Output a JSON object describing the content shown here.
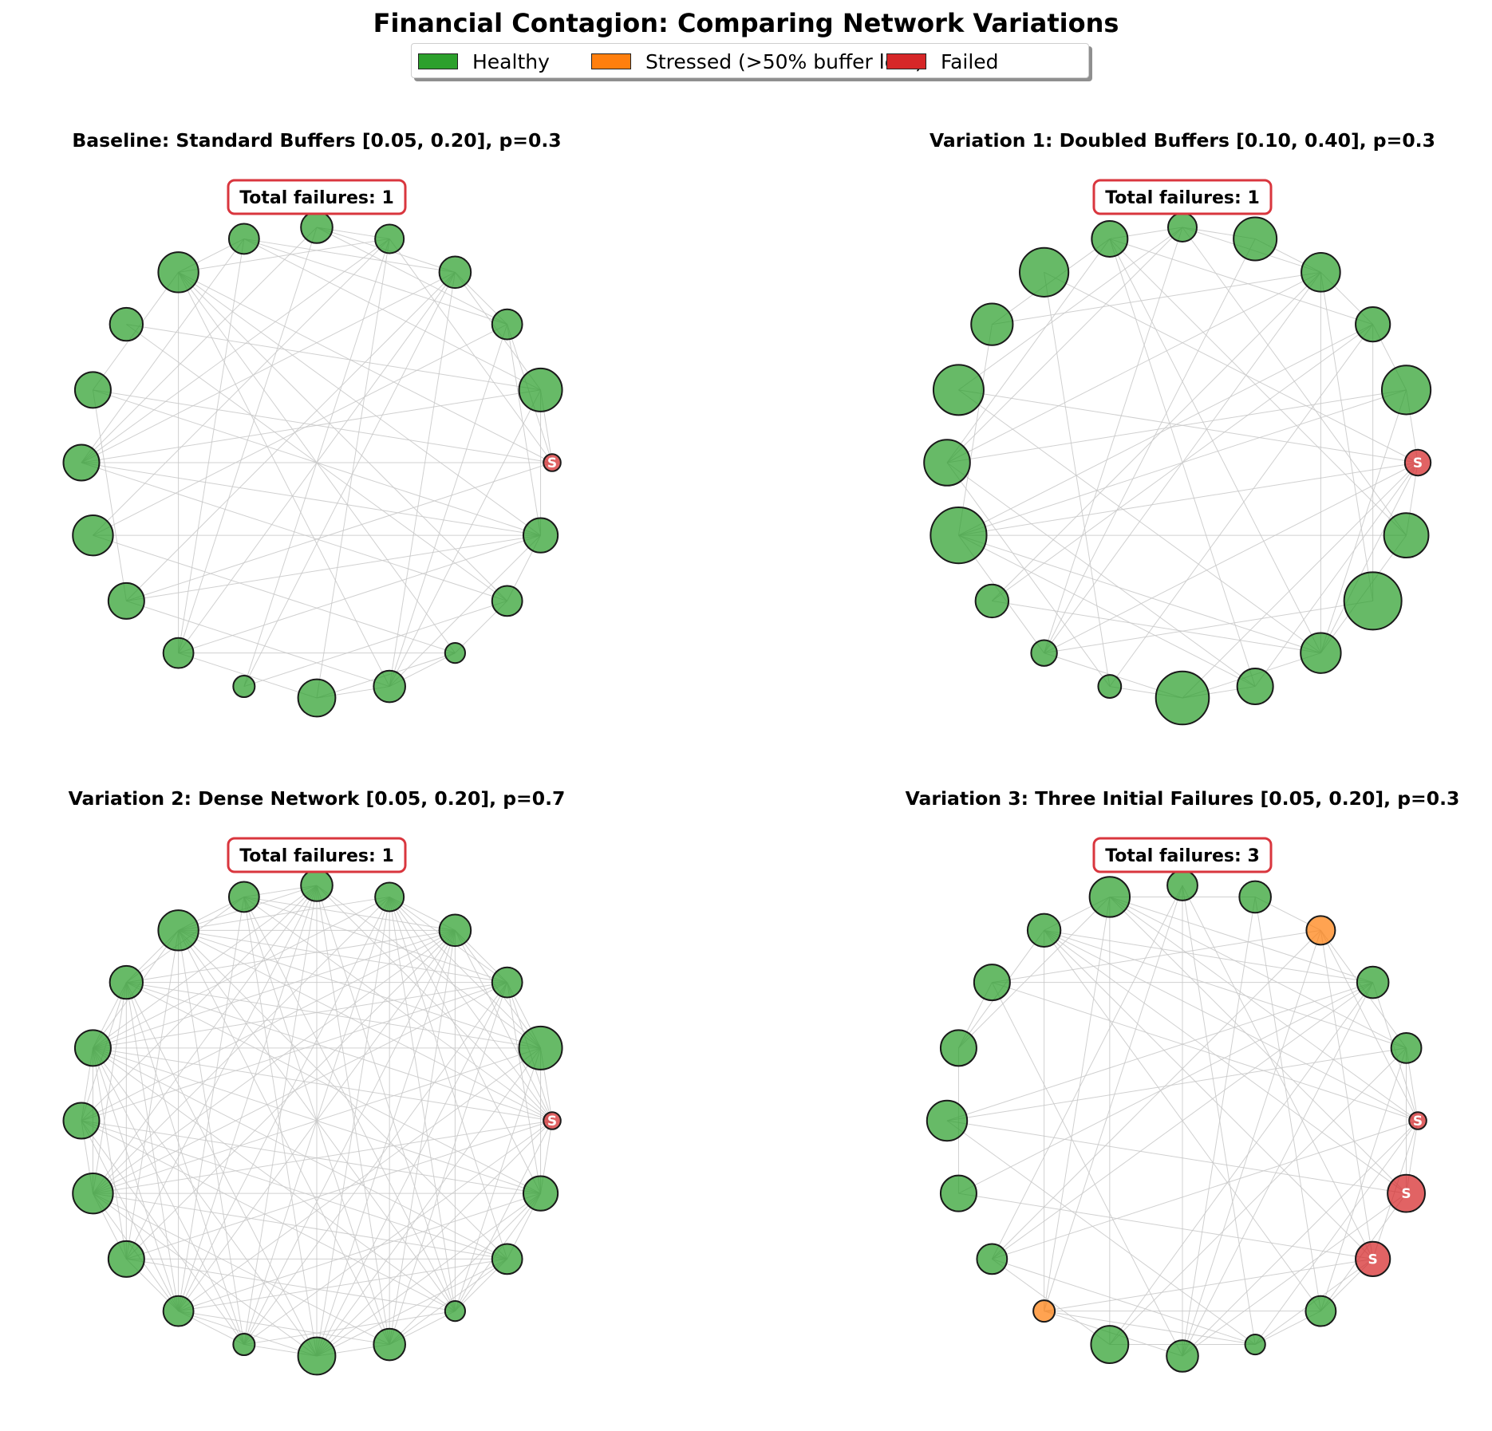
{
  "title": "Financial Contagion: Comparing Network Variations",
  "legend": {
    "items": [
      {
        "label": "Healthy",
        "color": "#2ca02c"
      },
      {
        "label": "Stressed (>50% buffer lost)",
        "color": "#ff7f0e"
      },
      {
        "label": "Failed",
        "color": "#d62728"
      }
    ]
  },
  "colors": {
    "edge": "#c8c8c8",
    "node_outline": "#1a1a1a",
    "badge_border": "#d9363e"
  },
  "chart_data": [
    {
      "type": "network",
      "title": "Baseline: Standard Buffers [0.05, 0.20], p=0.3",
      "failures_label": "Total failures: 1",
      "total_failures": 1,
      "buffer_range": [
        0.05,
        0.2
      ],
      "p": 0.3,
      "seed": 11,
      "node_sizes": [
        0.6,
        1.5,
        1.05,
        1.1,
        1.0,
        1.1,
        1.05,
        1.4,
        1.15,
        1.25,
        1.25,
        1.4,
        1.25,
        1.05,
        0.75,
        1.3,
        1.1,
        0.7,
        1.05,
        1.2
      ],
      "node_status": [
        "failed",
        "healthy",
        "healthy",
        "healthy",
        "healthy",
        "healthy",
        "healthy",
        "healthy",
        "healthy",
        "healthy",
        "healthy",
        "healthy",
        "healthy",
        "healthy",
        "healthy",
        "healthy",
        "healthy",
        "healthy",
        "healthy",
        "healthy"
      ],
      "node_markers": {
        "0": "S"
      }
    },
    {
      "type": "network",
      "title": "Variation 1: Doubled Buffers [0.10, 0.40], p=0.3",
      "failures_label": "Total failures: 1",
      "total_failures": 1,
      "buffer_range": [
        0.1,
        0.4
      ],
      "p": 0.3,
      "seed": 23,
      "node_sizes": [
        0.9,
        1.7,
        1.2,
        1.35,
        1.5,
        1.0,
        1.25,
        1.7,
        1.45,
        1.75,
        1.6,
        1.95,
        1.15,
        0.9,
        0.8,
        1.85,
        1.25,
        1.4,
        2.0,
        1.55
      ],
      "node_status": [
        "failed",
        "healthy",
        "healthy",
        "healthy",
        "healthy",
        "healthy",
        "healthy",
        "healthy",
        "healthy",
        "healthy",
        "healthy",
        "healthy",
        "healthy",
        "healthy",
        "healthy",
        "healthy",
        "healthy",
        "healthy",
        "healthy",
        "healthy"
      ],
      "node_markers": {
        "0": "S"
      }
    },
    {
      "type": "network",
      "title": "Variation 2: Dense Network [0.05, 0.20], p=0.7",
      "failures_label": "Total failures: 1",
      "total_failures": 1,
      "buffer_range": [
        0.05,
        0.2
      ],
      "p": 0.7,
      "seed": 37,
      "node_sizes": [
        0.6,
        1.5,
        1.05,
        1.1,
        1.0,
        1.1,
        1.05,
        1.4,
        1.15,
        1.25,
        1.25,
        1.4,
        1.25,
        1.05,
        0.75,
        1.3,
        1.1,
        0.7,
        1.05,
        1.2
      ],
      "node_status": [
        "failed",
        "healthy",
        "healthy",
        "healthy",
        "healthy",
        "healthy",
        "healthy",
        "healthy",
        "healthy",
        "healthy",
        "healthy",
        "healthy",
        "healthy",
        "healthy",
        "healthy",
        "healthy",
        "healthy",
        "healthy",
        "healthy",
        "healthy"
      ],
      "node_markers": {
        "0": "S"
      }
    },
    {
      "type": "network",
      "title": "Variation 3: Three Initial Failures [0.05, 0.20], p=0.3",
      "failures_label": "Total failures: 3",
      "total_failures": 3,
      "buffer_range": [
        0.05,
        0.2
      ],
      "p": 0.3,
      "seed": 53,
      "node_sizes": [
        0.6,
        1.05,
        1.1,
        1.0,
        1.1,
        1.05,
        1.4,
        1.15,
        1.25,
        1.25,
        1.4,
        1.25,
        1.05,
        0.75,
        1.3,
        1.1,
        0.7,
        1.05,
        1.2,
        1.3
      ],
      "node_status": [
        "failed",
        "healthy",
        "healthy",
        "stressed",
        "healthy",
        "healthy",
        "healthy",
        "healthy",
        "healthy",
        "healthy",
        "healthy",
        "healthy",
        "healthy",
        "stressed",
        "healthy",
        "healthy",
        "healthy",
        "healthy",
        "failed",
        "failed"
      ],
      "node_markers": {
        "0": "S",
        "18": "S",
        "19": "S"
      }
    }
  ]
}
